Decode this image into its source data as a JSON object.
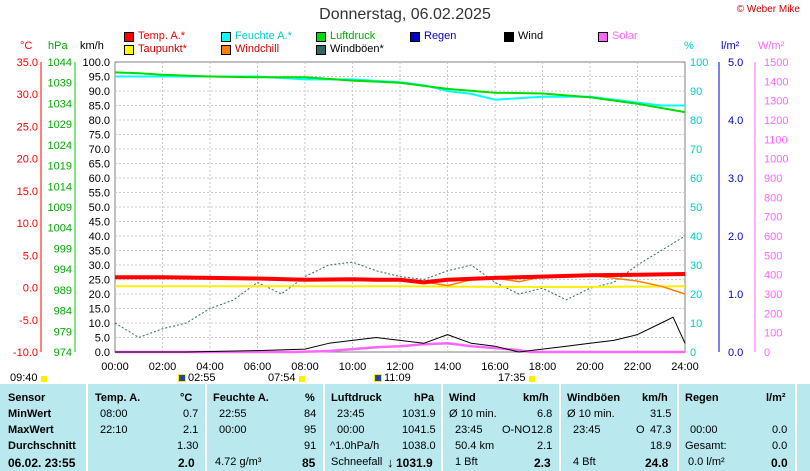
{
  "header": {
    "title": "Donnerstag, 06.02.2025",
    "copyright": "© Weber Mike"
  },
  "legend": [
    {
      "label": "Temp. A.*",
      "color": "#ff0000"
    },
    {
      "label": "Feuchte A.*",
      "color": "#00ffff"
    },
    {
      "label": "Luftdruck",
      "color": "#00dd00"
    },
    {
      "label": "Regen",
      "color": "#0000cc"
    },
    {
      "label": "Wind",
      "color": "#000000"
    },
    {
      "label": "Solar",
      "color": "#ff66ff"
    },
    {
      "label": "Taupunkt*",
      "color": "#ffff00"
    },
    {
      "label": "Windchill",
      "color": "#ff8000"
    },
    {
      "label": "Windböen*",
      "color": "#336666"
    }
  ],
  "axis_units": {
    "temp": "°C",
    "pressure": "hPa",
    "wind": "km/h",
    "humidity": "%",
    "rain": "l/m²",
    "solar": "W/m²"
  },
  "chart_data": {
    "type": "line",
    "x_ticks": [
      "00:00",
      "02:00",
      "04:00",
      "06:00",
      "08:00",
      "10:00",
      "12:00",
      "14:00",
      "16:00",
      "18:00",
      "20:00",
      "22:00",
      "24:00"
    ],
    "axes": {
      "temp": {
        "ticks": [
          "35.0",
          "30.0",
          "25.0",
          "20.0",
          "15.0",
          "10.0",
          "5.0",
          "0.0",
          "-5.0",
          "-10.0"
        ],
        "range": [
          -10,
          35
        ]
      },
      "pressure": {
        "ticks": [
          "1044",
          "1039",
          "1034",
          "1029",
          "1024",
          "1019",
          "1014",
          "1009",
          "1004",
          "999",
          "994",
          "989",
          "984",
          "979",
          "974"
        ],
        "range": [
          974,
          1044
        ]
      },
      "wind": {
        "ticks": [
          "100.0",
          "95.0",
          "90.0",
          "85.0",
          "80.0",
          "75.0",
          "70.0",
          "65.0",
          "60.0",
          "55.0",
          "50.0",
          "45.0",
          "40.0",
          "35.0",
          "30.0",
          "25.0",
          "20.0",
          "15.0",
          "10.0",
          "5.0",
          "0.0"
        ],
        "range": [
          0,
          100
        ]
      },
      "humidity": {
        "ticks": [
          "100",
          "90",
          "80",
          "70",
          "60",
          "50",
          "40",
          "30",
          "20",
          "10",
          "0"
        ],
        "range": [
          0,
          100
        ]
      },
      "rain": {
        "ticks": [
          "5.0",
          "4.0",
          "3.0",
          "2.0",
          "1.0",
          "0.0"
        ],
        "range": [
          0,
          5
        ]
      },
      "solar": {
        "ticks": [
          "1500",
          "1400",
          "1300",
          "1200",
          "1100",
          "1000",
          "900",
          "800",
          "700",
          "600",
          "500",
          "400",
          "300",
          "200",
          "100",
          "0"
        ],
        "range": [
          0,
          1500
        ]
      }
    },
    "series": [
      {
        "name": "Temp. A.*",
        "axis": "temp",
        "x": [
          0,
          2,
          4,
          6,
          8,
          10,
          11,
          12,
          13,
          14,
          16,
          18,
          20,
          22,
          24
        ],
        "y": [
          1.6,
          1.6,
          1.5,
          1.4,
          1.2,
          1.3,
          1.2,
          1.2,
          0.8,
          1.2,
          1.5,
          1.7,
          1.9,
          2.0,
          2.1
        ]
      },
      {
        "name": "Feuchte A.*",
        "axis": "humidity",
        "x": [
          0,
          2,
          4,
          6,
          8,
          10,
          12,
          13,
          14,
          15,
          16,
          18,
          20,
          22,
          23,
          24
        ],
        "y": [
          95,
          95,
          95,
          95,
          94,
          94,
          93,
          92,
          90,
          89,
          87,
          88,
          88,
          86,
          85,
          85
        ]
      },
      {
        "name": "Luftdruck",
        "axis": "pressure",
        "x": [
          0,
          1,
          2,
          4,
          6,
          8,
          10,
          12,
          14,
          16,
          18,
          20,
          22,
          24
        ],
        "y": [
          1041.5,
          1041.3,
          1040.9,
          1040.5,
          1040.3,
          1040.3,
          1039.5,
          1039.0,
          1037.5,
          1036.6,
          1036.4,
          1035.5,
          1033.9,
          1031.9
        ]
      },
      {
        "name": "Taupunkt*",
        "axis": "temp",
        "x": [
          0,
          4,
          8,
          12,
          16,
          20,
          24
        ],
        "y": [
          0.2,
          0.2,
          0.2,
          0.2,
          0.1,
          0.1,
          0.2
        ]
      },
      {
        "name": "Windchill",
        "axis": "temp",
        "x": [
          0,
          2,
          4,
          6,
          8,
          10,
          12,
          13,
          14,
          15,
          16,
          17,
          18,
          20,
          22,
          23,
          24
        ],
        "y": [
          1.6,
          1.6,
          1.5,
          1.4,
          1.2,
          1.3,
          1.2,
          0.9,
          0.3,
          1.2,
          1.5,
          0.9,
          1.7,
          1.9,
          1.0,
          0.2,
          -1.0
        ]
      },
      {
        "name": "Windböen*",
        "axis": "wind",
        "x": [
          0,
          1,
          2,
          3,
          4,
          5,
          6,
          7,
          8,
          9,
          10,
          11,
          12,
          13,
          14,
          15,
          16,
          17,
          18,
          19,
          20,
          21,
          22,
          23,
          24
        ],
        "y": [
          10,
          5,
          8,
          10,
          15,
          18,
          24,
          20,
          26,
          30,
          31,
          28,
          26,
          25,
          28,
          30,
          24,
          20,
          22,
          18,
          22,
          24,
          30,
          35,
          40
        ]
      },
      {
        "name": "Wind",
        "axis": "wind",
        "x": [
          0,
          3,
          6,
          8,
          9,
          10,
          11,
          12,
          13,
          14,
          15,
          16,
          17,
          18,
          19,
          20,
          21,
          22,
          23,
          23.5,
          24
        ],
        "y": [
          0,
          0,
          0.5,
          1,
          3,
          4,
          5,
          4,
          3,
          6,
          3,
          2,
          0,
          1,
          2,
          3,
          4,
          6,
          10,
          12,
          3
        ]
      },
      {
        "name": "Solar",
        "axis": "solar",
        "x": [
          0,
          7.5,
          9,
          10,
          11,
          12,
          13,
          14,
          15,
          16,
          17,
          17.5,
          24
        ],
        "y": [
          0,
          0,
          5,
          15,
          25,
          30,
          40,
          45,
          30,
          20,
          10,
          0,
          0
        ]
      }
    ]
  },
  "time_marks": {
    "start": "09:40",
    "sunrise": "02:55",
    "daystart": "07:54",
    "noon": "11:09",
    "sunset": "17:35"
  },
  "table": {
    "headers": {
      "sensor": "Sensor",
      "temp": "Temp. A.",
      "temp_unit": "°C",
      "hum": "Feuchte A.",
      "hum_unit": "%",
      "press": "Luftdruck",
      "press_unit": "hPa",
      "wind": "Wind",
      "wind_unit": "km/h",
      "gust": "Windböen",
      "gust_unit": "km/h",
      "rain": "Regen",
      "rain_unit": "l/m²"
    },
    "rows": {
      "min": {
        "label": "MinWert",
        "temp_time": "08:00",
        "temp": "0.7",
        "hum_time": "22:55",
        "hum": "84",
        "press_time": "23:45",
        "press": "1031.9",
        "wind_label": "Ø 10 min.",
        "wind": "6.8",
        "gust_label": "Ø 10 min.",
        "gust": "31.5"
      },
      "max": {
        "label": "MaxWert",
        "temp_time": "22:10",
        "temp": "2.1",
        "hum_time": "00:00",
        "hum": "95",
        "press_time": "00:00",
        "press": "1041.5",
        "wind_time": "23:45",
        "wind_dir": "O-NO",
        "wind": "12.8",
        "gust_time": "23:45",
        "gust_dir": "O",
        "gust": "47.3",
        "rain_time": "00:00",
        "rain": "0.0"
      },
      "avg": {
        "label": "Durchschnitt",
        "temp": "1.30",
        "hum": "91",
        "press_label": "^1.0hPa/h",
        "press": "1038.0",
        "wind_km": "50.4 km",
        "wind": "2.1",
        "gust": "18.9",
        "rain_label": "Gesamt:",
        "rain": "0.0"
      },
      "current": {
        "label": "06.02. 23:55",
        "temp": "2.0",
        "hum_abs": "4.72 g/m³",
        "hum": "85",
        "press_label": "Schneefall",
        "press": "1031.9",
        "wind_bft": "1 Bft",
        "wind": "2.3",
        "gust_bft": "4 Bft",
        "gust": "24.8",
        "rain_rate": "0.0 l/m²",
        "rain": "0.0"
      }
    }
  }
}
